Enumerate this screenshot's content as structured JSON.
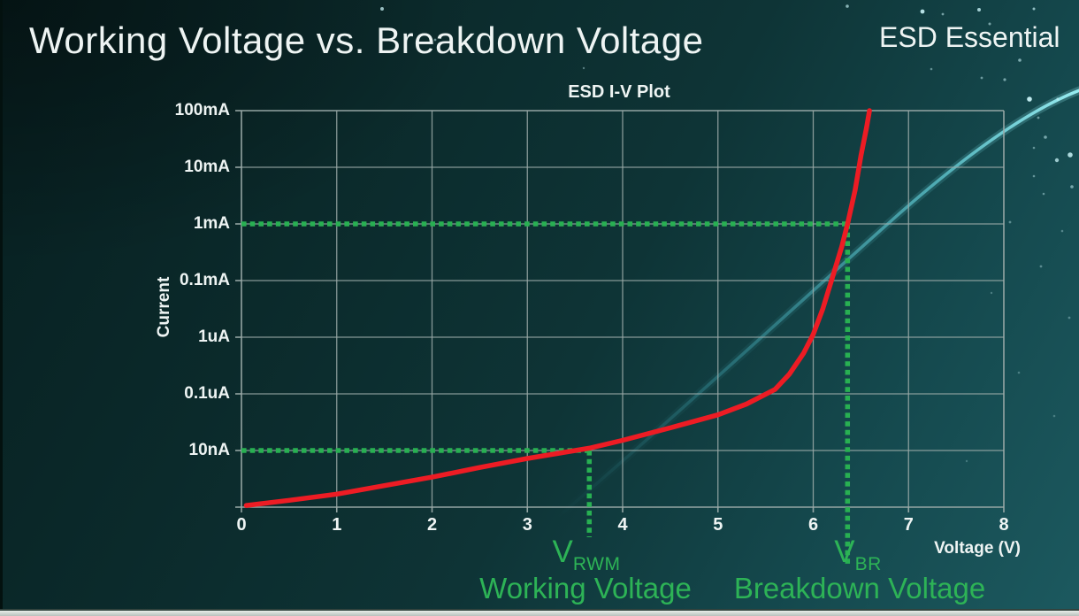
{
  "header": {
    "title": "Working Voltage vs. Breakdown Voltage",
    "brand": "ESD Essential"
  },
  "chart": {
    "title": "ESD I-V Plot",
    "x_axis": {
      "label": "Voltage (V)",
      "ticks": [
        "0",
        "1",
        "2",
        "3",
        "4",
        "5",
        "6",
        "7",
        "8"
      ]
    },
    "y_axis": {
      "label": "Current",
      "tick_labels_top_to_bottom": [
        "100mA",
        "10mA",
        "1mA",
        "0.1mA",
        "1uA",
        "0.1uA",
        "10nA"
      ]
    },
    "annotations": {
      "vrwm": {
        "symbol": "V",
        "subscript": "RWM",
        "caption": "Working Voltage"
      },
      "vbr": {
        "symbol": "V",
        "subscript": "BR",
        "caption": "Breakdown Voltage"
      }
    }
  },
  "chart_data": {
    "type": "line",
    "title": "ESD I-V Plot",
    "xlabel": "Voltage (V)",
    "ylabel": "Current",
    "x_ticks": [
      0,
      1,
      2,
      3,
      4,
      5,
      6,
      7,
      8
    ],
    "x_range": [
      0,
      8
    ],
    "y_scale": "log-decades",
    "y_gridline_labels_bottom_to_top": [
      "10nA",
      "0.1uA",
      "1uA",
      "0.1mA",
      "1mA",
      "10mA",
      "100mA"
    ],
    "grid": true,
    "series": [
      {
        "name": "ESD device I-V curve",
        "color": "#ed1c24",
        "y_units": "decade steps above bottom axis (step 1 = 10nA, step 2 = 0.1uA, step 3 = 1uA, step 4 = 0.1mA, step 5 = 1mA, step 6 = 10mA, step 7 = 100mA)",
        "points": [
          [
            0.05,
            0.03
          ],
          [
            0.5,
            0.12
          ],
          [
            1.0,
            0.23
          ],
          [
            1.5,
            0.38
          ],
          [
            2.0,
            0.53
          ],
          [
            2.5,
            0.7
          ],
          [
            3.0,
            0.86
          ],
          [
            3.65,
            1.04
          ],
          [
            4.0,
            1.18
          ],
          [
            4.5,
            1.4
          ],
          [
            5.0,
            1.63
          ],
          [
            5.3,
            1.82
          ],
          [
            5.6,
            2.08
          ],
          [
            5.75,
            2.35
          ],
          [
            5.9,
            2.72
          ],
          [
            6.0,
            3.05
          ],
          [
            6.1,
            3.5
          ],
          [
            6.2,
            4.05
          ],
          [
            6.3,
            4.6
          ],
          [
            6.36,
            5.0
          ],
          [
            6.44,
            5.6
          ],
          [
            6.5,
            6.2
          ],
          [
            6.56,
            6.7
          ],
          [
            6.59,
            7.0
          ]
        ]
      }
    ],
    "guides": [
      {
        "name": "VRWM working voltage marker",
        "voltage": 3.65,
        "current_level": "10nA",
        "decade_step": 1
      },
      {
        "name": "VBR breakdown voltage marker",
        "voltage": 6.36,
        "current_level": "1mA",
        "decade_step": 5
      }
    ]
  },
  "colors": {
    "curve_red": "#ed1c24",
    "guide_green": "#28b052",
    "annotation_green": "#2db356",
    "grid_gray": "#9caba9",
    "text_white": "#eef4f3",
    "background_dark": "#071f20",
    "background_light": "#1c595f",
    "swoosh_cyan": "#8feaf2"
  }
}
